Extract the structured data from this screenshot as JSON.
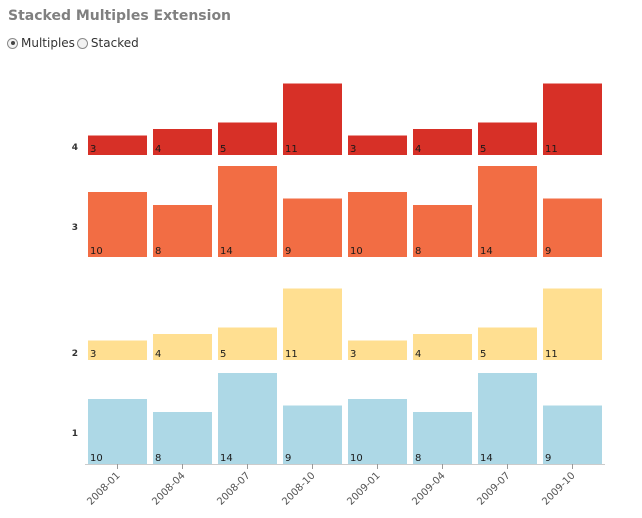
{
  "title": "Stacked Multiples Extension",
  "controls": {
    "options": [
      {
        "label": "Multiples",
        "selected": true
      },
      {
        "label": "Stacked",
        "selected": false
      }
    ]
  },
  "chart_data": {
    "type": "bar",
    "layout": "small-multiples",
    "categories": [
      "2008-01",
      "2008-04",
      "2008-07",
      "2008-10",
      "2009-01",
      "2009-04",
      "2009-07",
      "2009-10"
    ],
    "series": [
      {
        "name": "1",
        "values": [
          10,
          8,
          14,
          9,
          10,
          8,
          14,
          9
        ],
        "color": "#add8e6"
      },
      {
        "name": "2",
        "values": [
          3,
          4,
          5,
          11,
          3,
          4,
          5,
          11
        ],
        "color": "#ffdf91"
      },
      {
        "name": "3",
        "values": [
          10,
          8,
          14,
          9,
          10,
          8,
          14,
          9
        ],
        "color": "#f26d44"
      },
      {
        "name": "4",
        "values": [
          3,
          4,
          5,
          11,
          3,
          4,
          5,
          11
        ],
        "color": "#d73027"
      }
    ],
    "data_labels": true,
    "grid": false,
    "legend": "none"
  }
}
